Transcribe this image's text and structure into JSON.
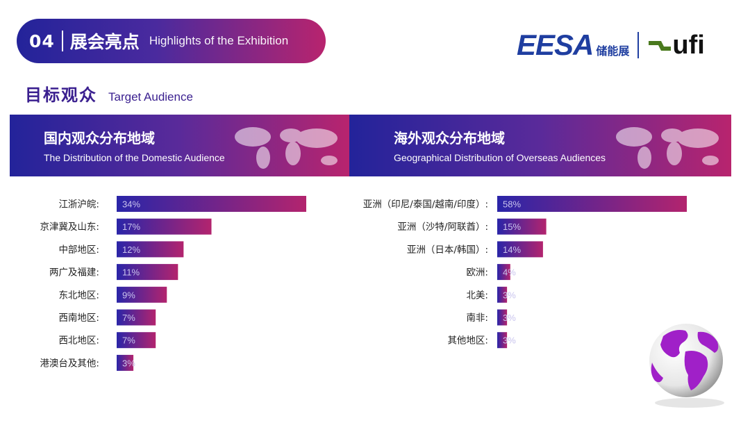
{
  "header": {
    "number": "04",
    "title_cn": "展会亮点",
    "title_en": "Highlights of the Exhibition"
  },
  "logo": {
    "eesa": "EESA",
    "eesa_cn": "储能展",
    "ufi": "ufi"
  },
  "section": {
    "title_cn": "目标观众",
    "title_en": "Target Audience"
  },
  "colors": {
    "bar_start": "#2a25a8",
    "bar_end": "#b3246e",
    "accent": "#3a1f8f"
  },
  "chart_data": [
    {
      "type": "bar",
      "orientation": "horizontal",
      "title": "国内观众分布地域",
      "subtitle": "The Distribution of the Domestic Audience",
      "categories": [
        "江浙沪皖:",
        "京津冀及山东:",
        "中部地区:",
        "两广及福建:",
        "东北地区:",
        "西南地区:",
        "西北地区:",
        "港澳台及其他:"
      ],
      "values": [
        34,
        17,
        12,
        11,
        9,
        7,
        7,
        3
      ],
      "labels": [
        "34%",
        "17%",
        "12%",
        "11%",
        "9%",
        "7%",
        "7%",
        "3%"
      ],
      "xlabel": "",
      "ylabel": "",
      "xlim": [
        0,
        34
      ]
    },
    {
      "type": "bar",
      "orientation": "horizontal",
      "title": "海外观众分布地域",
      "subtitle": "Geographical Distribution of Overseas Audiences",
      "categories": [
        "亚洲（印尼/泰国/越南/印度）:",
        "亚洲（沙特/阿联酋）:",
        "亚洲（日本/韩国）:",
        "欧洲:",
        "北美:",
        "南非:",
        "其他地区:"
      ],
      "values": [
        58,
        15,
        14,
        4,
        3,
        3,
        3
      ],
      "labels": [
        "58%",
        "15%",
        "14%",
        "4%",
        "3%",
        "3%",
        "3%"
      ],
      "xlabel": "",
      "ylabel": "",
      "xlim": [
        0,
        58
      ]
    }
  ]
}
